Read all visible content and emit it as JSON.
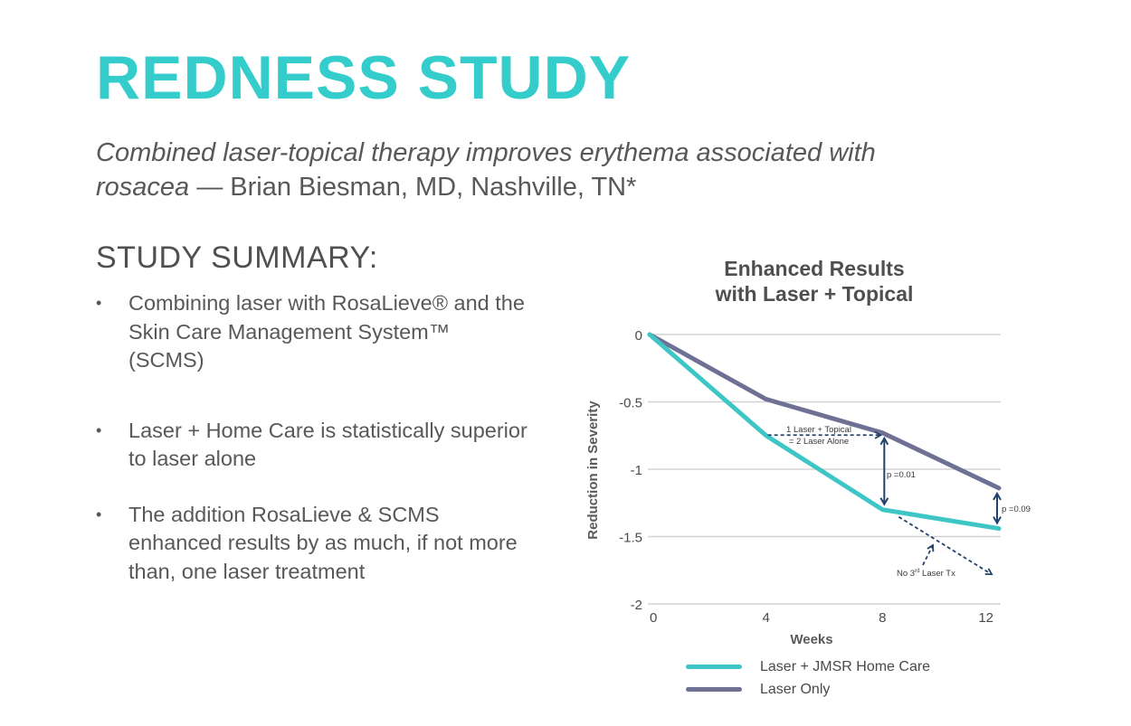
{
  "page": {
    "title": "REDNESS STUDY",
    "subtitle_italic": "Combined laser-topical therapy improves erythema associated with rosacea",
    "subtitle_rest": " — Brian Biesman, MD, Nashville, TN*",
    "summary_heading": "STUDY SUMMARY:",
    "bullet_glyph": "•",
    "bullets": [
      "Combining laser with RosaLieve® and the Skin Care Management System™ (SCMS)",
      "Laser + Home Care is statistically superior to laser alone",
      "The addition RosaLieve & SCMS enhanced results by as much, if not more than, one laser treatment"
    ],
    "colors": {
      "accent": "#35cccc",
      "series_home_care": "#3ec6c6",
      "series_laser_only": "#6e7193",
      "annotation": "#23416b",
      "grid": "#d3d3d3"
    }
  },
  "chart_data": {
    "type": "line",
    "title": "Enhanced Results with Laser + Topical",
    "title_lines": [
      "Enhanced Results",
      "with Laser + Topical"
    ],
    "xlabel": "Weeks",
    "ylabel": "Reduction in Severity",
    "x": [
      0,
      4,
      8,
      12
    ],
    "x_ticks": [
      "0",
      "4",
      "8",
      "12"
    ],
    "y_ticks": [
      "0",
      "-0.5",
      "-1",
      "-1.5",
      "-2"
    ],
    "y_tick_values": [
      0,
      -0.5,
      -1,
      -1.5,
      -2
    ],
    "xlim": [
      0,
      12
    ],
    "ylim": [
      -2,
      0
    ],
    "grid": "horizontal",
    "legend_position": "bottom",
    "series": [
      {
        "name": "Laser + JMSR Home Care",
        "values": [
          0,
          -0.75,
          -1.3,
          -1.44
        ]
      },
      {
        "name": "Laser Only",
        "values": [
          0,
          -0.48,
          -0.73,
          -1.14
        ]
      }
    ],
    "annotations": [
      {
        "text_lines": [
          "1 Laser + Topical",
          "= 2 Laser Alone"
        ],
        "type": "dashed-arrow",
        "from": [
          4,
          -0.75
        ],
        "to": [
          8,
          -0.75
        ]
      },
      {
        "text": "p =0.01",
        "type": "double-arrow",
        "x": 8,
        "y_from": -0.73,
        "y_to": -1.3
      },
      {
        "text": "p =0.09",
        "type": "double-arrow",
        "x": 12,
        "y_from": -1.14,
        "y_to": -1.44
      },
      {
        "text": "No 3rd Laser Tx",
        "text_main": "No 3",
        "text_sup": "rd",
        "text_tail": " Laser Tx",
        "type": "dashed-projection",
        "from": [
          8,
          -1.3
        ],
        "to": [
          12,
          -1.78
        ]
      }
    ]
  }
}
